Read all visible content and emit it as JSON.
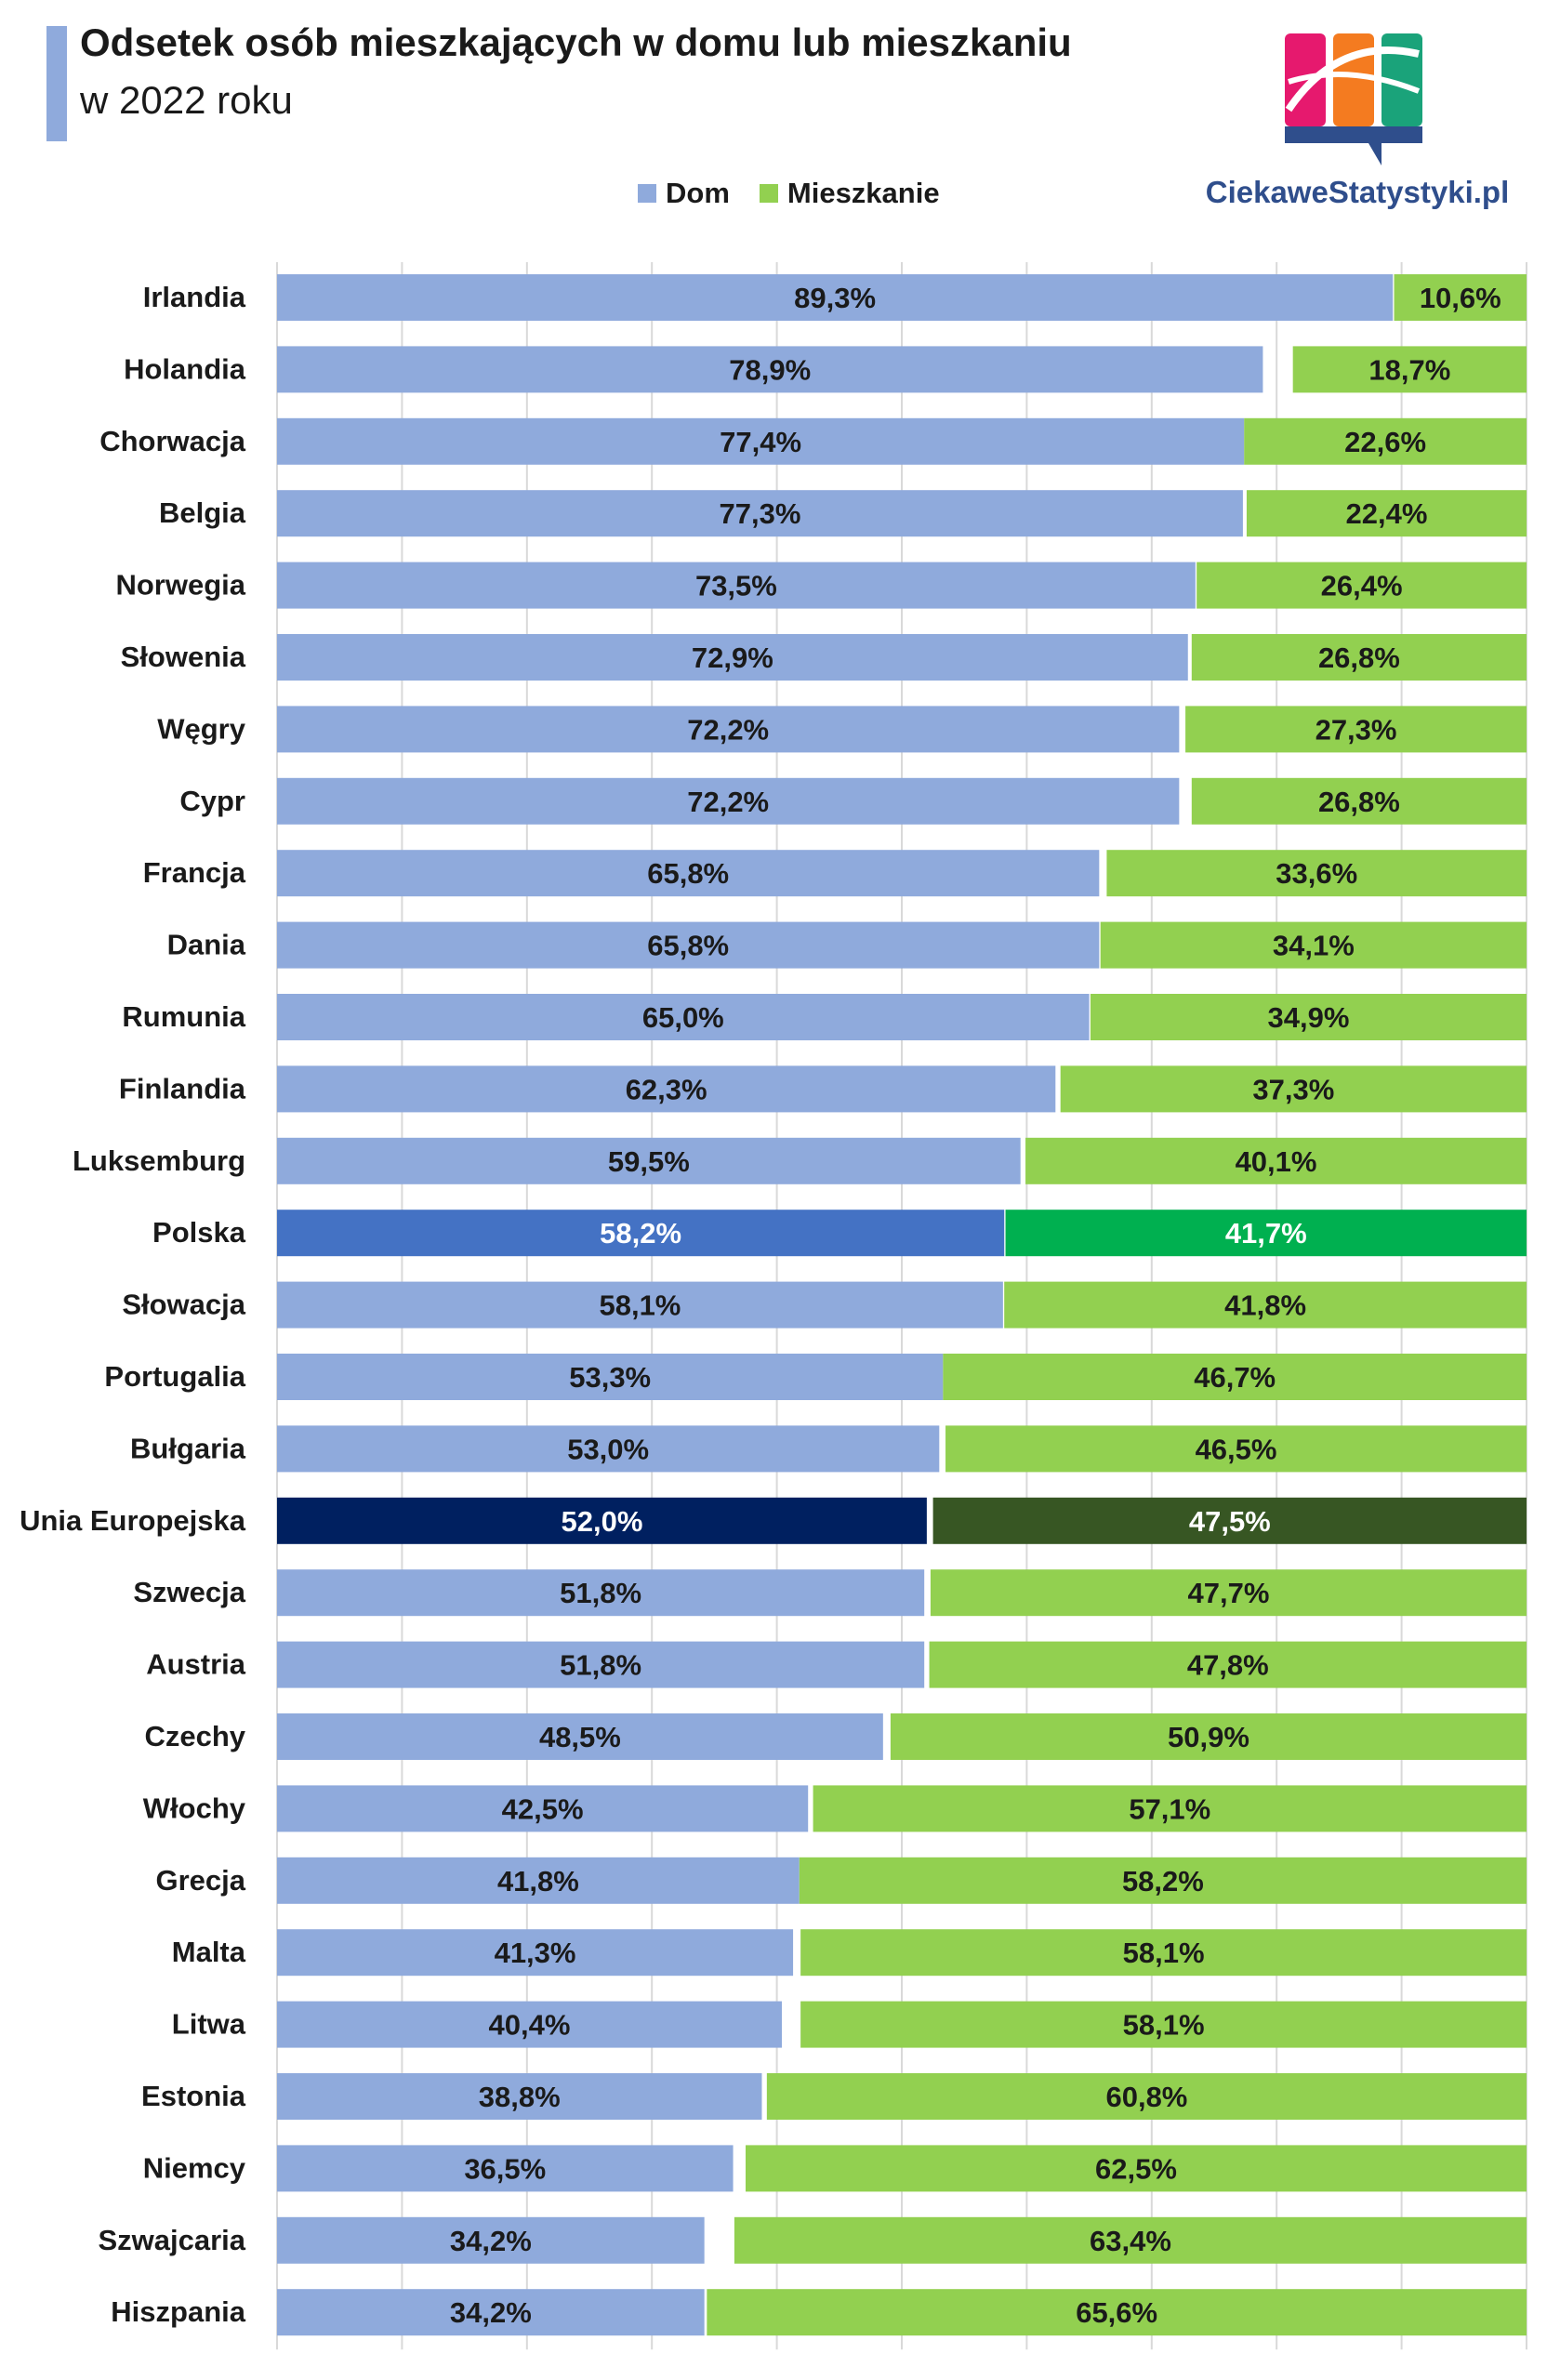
{
  "title": {
    "line1": "Odsetek osób mieszkających w domu lub mieszkaniu",
    "line2": "w 2022 roku"
  },
  "legend": {
    "dom": "Dom",
    "mieszkanie": "Mieszkanie"
  },
  "logo": {
    "text": "CiekaweStatystyki.pl",
    "colors": [
      "#e6196e",
      "#f47b20",
      "#1aa37a",
      "#2f4e8c"
    ]
  },
  "colors": {
    "dom": "#8faadc",
    "mieszkanie": "#92d050",
    "polska_dom": "#4472c4",
    "polska_mieszkanie": "#00b050",
    "ue_dom": "#002060",
    "ue_mieszkanie": "#375623",
    "gridline": "#d9d9d9"
  },
  "chart_data": {
    "type": "bar",
    "orientation": "horizontal",
    "stacked": true,
    "title": "Odsetek osób mieszkających w domu lub mieszkaniu w 2022 roku",
    "xlim": [
      0,
      100
    ],
    "grid": true,
    "legend_position": "top",
    "categories": [
      "Irlandia",
      "Holandia",
      "Chorwacja",
      "Belgia",
      "Norwegia",
      "Słowenia",
      "Węgry",
      "Cypr",
      "Francja",
      "Dania",
      "Rumunia",
      "Finlandia",
      "Luksemburg",
      "Polska",
      "Słowacja",
      "Portugalia",
      "Bułgaria",
      "Unia Europejska",
      "Szwecja",
      "Austria",
      "Czechy",
      "Włochy",
      "Grecja",
      "Malta",
      "Litwa",
      "Estonia",
      "Niemcy",
      "Szwajcaria",
      "Hiszpania"
    ],
    "series": [
      {
        "name": "Dom",
        "values": [
          89.3,
          78.9,
          77.4,
          77.3,
          73.5,
          72.9,
          72.2,
          72.2,
          65.8,
          65.8,
          65.0,
          62.3,
          59.5,
          58.2,
          58.1,
          53.3,
          53.0,
          52.0,
          51.8,
          51.8,
          48.5,
          42.5,
          41.8,
          41.3,
          40.4,
          38.8,
          36.5,
          34.2,
          34.2
        ],
        "labels": [
          "89,3%",
          "78,9%",
          "77,4%",
          "77,3%",
          "73,5%",
          "72,9%",
          "72,2%",
          "72,2%",
          "65,8%",
          "65,8%",
          "65,0%",
          "62,3%",
          "59,5%",
          "58,2%",
          "58,1%",
          "53,3%",
          "53,0%",
          "52,0%",
          "51,8%",
          "51,8%",
          "48,5%",
          "42,5%",
          "41,8%",
          "41,3%",
          "40,4%",
          "38,8%",
          "36,5%",
          "34,2%",
          "34,2%"
        ]
      },
      {
        "name": "Mieszkanie",
        "values": [
          10.6,
          18.7,
          22.6,
          22.4,
          26.4,
          26.8,
          27.3,
          26.8,
          33.6,
          34.1,
          34.9,
          37.3,
          40.1,
          41.7,
          41.8,
          46.7,
          46.5,
          47.5,
          47.7,
          47.8,
          50.9,
          57.1,
          58.2,
          58.1,
          58.1,
          60.8,
          62.5,
          63.4,
          65.6
        ],
        "labels": [
          "10,6%",
          "18,7%",
          "22,6%",
          "22,4%",
          "26,4%",
          "26,8%",
          "27,3%",
          "26,8%",
          "33,6%",
          "34,1%",
          "34,9%",
          "37,3%",
          "40,1%",
          "41,7%",
          "41,8%",
          "46,7%",
          "46,5%",
          "47,5%",
          "47,7%",
          "47,8%",
          "50,9%",
          "57,1%",
          "58,2%",
          "58,1%",
          "58,1%",
          "60,8%",
          "62,5%",
          "63,4%",
          "65,6%"
        ]
      }
    ],
    "highlighted": {
      "Polska": {
        "dom": "#4472c4",
        "mieszkanie": "#00b050",
        "label_color": "#ffffff"
      },
      "Unia Europejska": {
        "dom": "#002060",
        "mieszkanie": "#375623",
        "label_color": "#ffffff"
      }
    }
  }
}
